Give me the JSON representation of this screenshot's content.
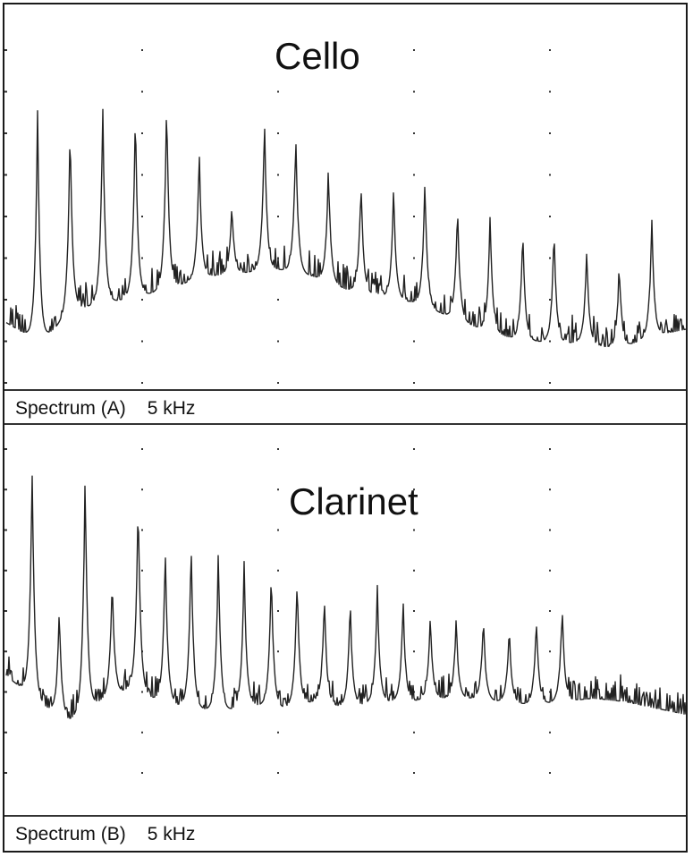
{
  "chart_data": [
    {
      "type": "line",
      "title": "Cello",
      "caption": "Spectrum (A)",
      "range_label": "5 kHz",
      "grid": "dotted",
      "x_range_khz": [
        0,
        5
      ],
      "line_color": "#222222",
      "peaks_khz": [
        0.23,
        0.47,
        0.71,
        0.95,
        1.18,
        1.42,
        1.66,
        1.9,
        2.13,
        2.37,
        2.61,
        2.85,
        3.08,
        3.32,
        3.56,
        3.8,
        4.03,
        4.27,
        4.51,
        4.75
      ],
      "peak_levels": [
        0.84,
        0.79,
        0.86,
        0.84,
        0.87,
        0.71,
        0.55,
        0.81,
        0.77,
        0.67,
        0.63,
        0.6,
        0.64,
        0.56,
        0.53,
        0.48,
        0.48,
        0.42,
        0.38,
        0.51
      ],
      "floor_levels": [
        0.2,
        0.14,
        0.24,
        0.26,
        0.28,
        0.31,
        0.34,
        0.35,
        0.36,
        0.34,
        0.3,
        0.28,
        0.26,
        0.22,
        0.18,
        0.15,
        0.14,
        0.14,
        0.12,
        0.16,
        0.18
      ]
    },
    {
      "type": "line",
      "title": "Clarinet",
      "caption": "Spectrum (B)",
      "range_label": "5 kHz",
      "grid": "dotted",
      "x_range_khz": [
        0,
        5
      ],
      "line_color": "#222222",
      "peaks_khz": [
        0.19,
        0.39,
        0.58,
        0.78,
        0.97,
        1.17,
        1.36,
        1.56,
        1.75,
        1.95,
        2.14,
        2.34,
        2.53,
        2.73,
        2.92,
        3.12,
        3.31,
        3.51,
        3.7,
        3.9,
        4.09
      ],
      "peak_levels": [
        0.97,
        0.52,
        0.95,
        0.62,
        0.87,
        0.72,
        0.74,
        0.7,
        0.67,
        0.65,
        0.63,
        0.57,
        0.56,
        0.59,
        0.55,
        0.51,
        0.49,
        0.5,
        0.47,
        0.5,
        0.54
      ],
      "floor_levels": [
        0.32,
        0.24,
        0.18,
        0.24,
        0.28,
        0.24,
        0.22,
        0.21,
        0.23,
        0.22,
        0.24,
        0.22,
        0.24,
        0.24,
        0.25,
        0.25,
        0.24,
        0.23,
        0.24,
        0.25,
        0.24,
        0.22,
        0.2
      ]
    }
  ]
}
